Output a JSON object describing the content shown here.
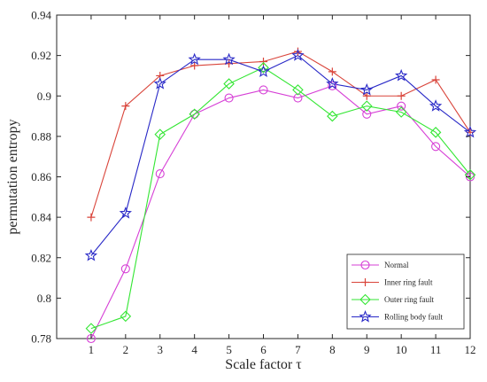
{
  "chart_data": {
    "type": "line",
    "title": "",
    "xlabel": "Scale factor τ",
    "ylabel": "permutation entropy",
    "x": [
      1,
      2,
      3,
      4,
      5,
      6,
      7,
      8,
      9,
      10,
      11,
      12
    ],
    "xlim": [
      0,
      12
    ],
    "ylim": [
      0.78,
      0.94
    ],
    "xticks": [
      1,
      2,
      3,
      4,
      5,
      6,
      7,
      8,
      9,
      10,
      11,
      12
    ],
    "yticks": [
      "0.78",
      "0.8",
      "0.82",
      "0.84",
      "0.86",
      "0.88",
      "0.9",
      "0.92",
      "0.94"
    ],
    "grid": false,
    "legend_position": "bottom-right",
    "series": [
      {
        "name": "Normal",
        "color": "#d63fd6",
        "marker": "circle",
        "values": [
          0.78,
          0.8145,
          0.8615,
          0.891,
          0.899,
          0.903,
          0.899,
          0.905,
          0.891,
          0.895,
          0.875,
          0.86
        ]
      },
      {
        "name": "Inner ring fault",
        "color": "#d9443a",
        "marker": "plus",
        "values": [
          0.84,
          0.895,
          0.91,
          0.915,
          0.916,
          0.917,
          0.922,
          0.912,
          0.9,
          0.9,
          0.908,
          0.882
        ]
      },
      {
        "name": "Outer ring fault",
        "color": "#33e633",
        "marker": "diamond",
        "values": [
          0.785,
          0.791,
          0.881,
          0.891,
          0.906,
          0.914,
          0.903,
          0.89,
          0.895,
          0.892,
          0.882,
          0.861
        ]
      },
      {
        "name": "Rolling body fault",
        "color": "#2929c7",
        "marker": "star",
        "values": [
          0.821,
          0.842,
          0.906,
          0.918,
          0.918,
          0.912,
          0.92,
          0.906,
          0.903,
          0.91,
          0.895,
          0.882
        ]
      }
    ]
  }
}
